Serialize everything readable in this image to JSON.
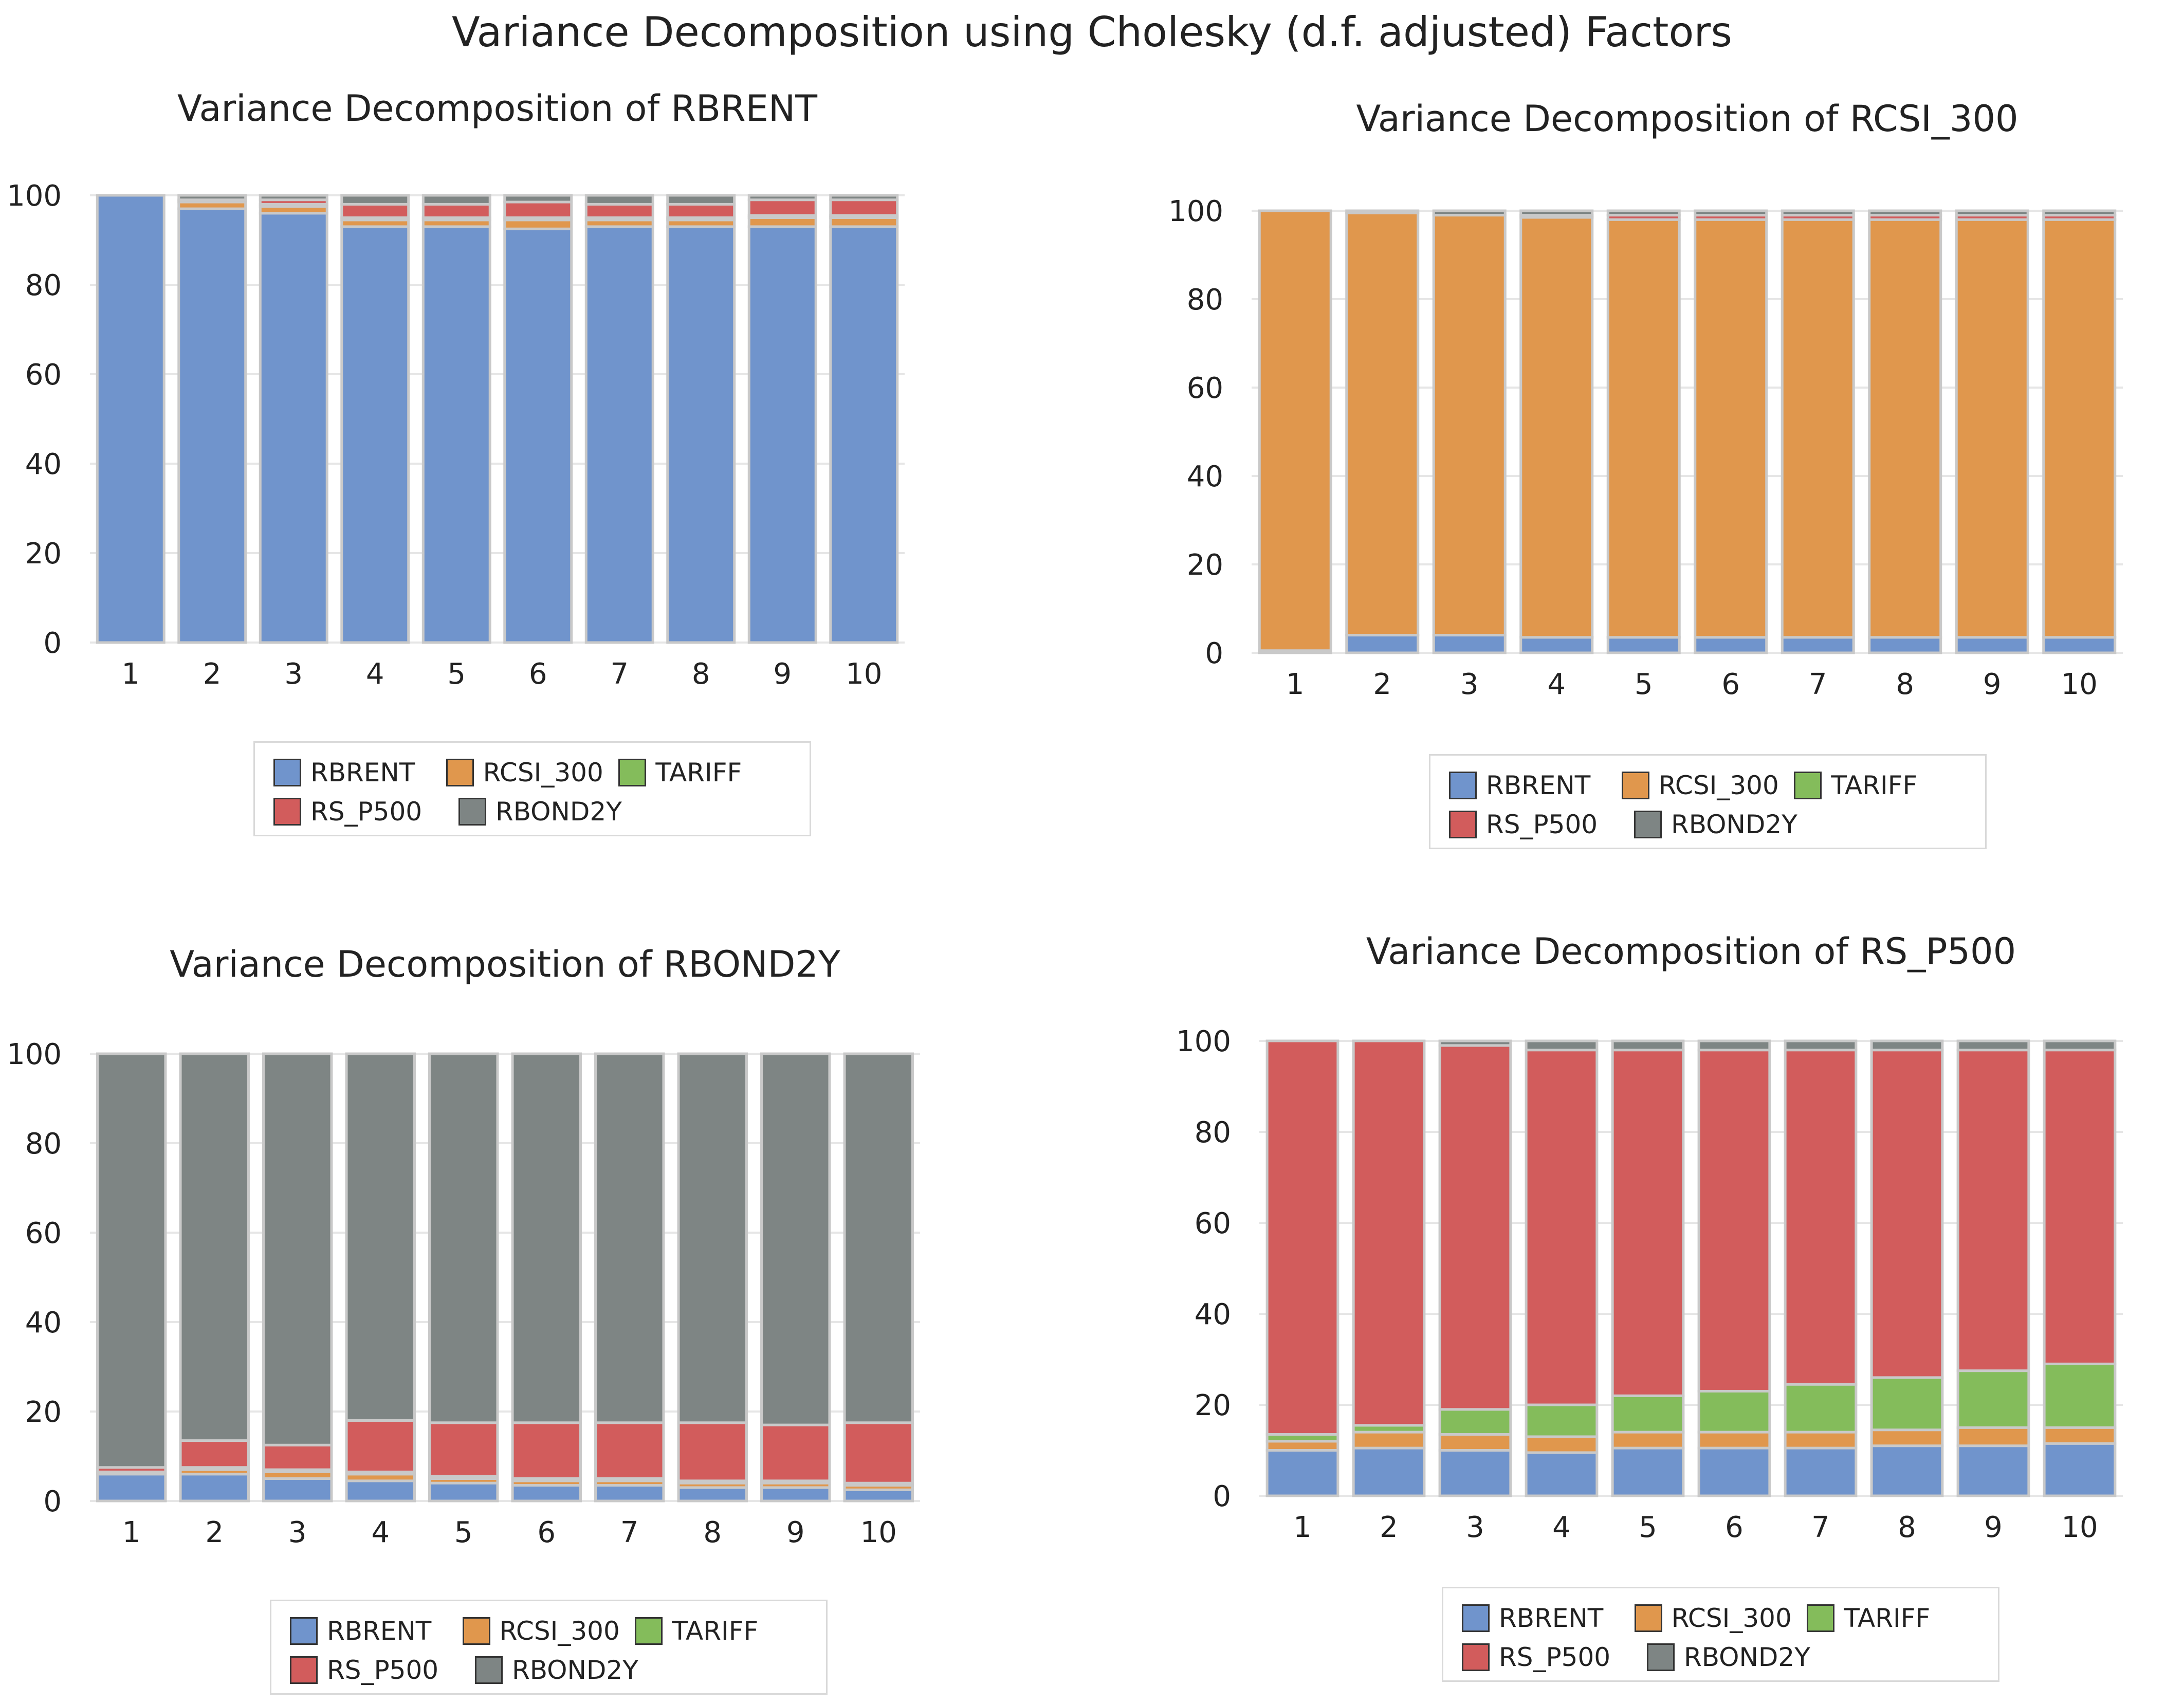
{
  "main_title": "Variance Decomposition using Cholesky (d.f. adjusted) Factors",
  "legend_labels": [
    "RBRENT",
    "RCSI_300",
    "TARIFF",
    "RS_P500",
    "RBOND2Y"
  ],
  "colors": {
    "RBRENT": "#7094cc",
    "RCSI_300": "#e0974d",
    "TARIFF": "#84bc5b",
    "RS_P500": "#d25c5c",
    "RBOND2Y": "#7e8584",
    "gap": "#c9c9c9",
    "grid": "#e6e6e6"
  },
  "chart_data": [
    {
      "type": "bar",
      "stacked": true,
      "title": "Variance Decomposition of RBRENT",
      "categories": [
        "1",
        "2",
        "3",
        "4",
        "5",
        "6",
        "7",
        "8",
        "9",
        "10"
      ],
      "ylim": [
        0,
        100
      ],
      "yticks": [
        "0",
        "20",
        "40",
        "60",
        "80",
        "100"
      ],
      "series": [
        {
          "name": "RBRENT",
          "values": [
            100,
            97,
            96,
            93,
            93,
            92.5,
            93,
            93,
            93,
            93
          ]
        },
        {
          "name": "RCSI_300",
          "values": [
            0,
            1.5,
            1.5,
            1.5,
            1.5,
            2,
            1.5,
            1.5,
            2,
            2
          ]
        },
        {
          "name": "TARIFF",
          "values": [
            0,
            0,
            0.5,
            0.5,
            0.5,
            0.5,
            0.5,
            0.5,
            0.5,
            0.5
          ]
        },
        {
          "name": "RS_P500",
          "values": [
            0,
            0.5,
            1,
            3,
            3,
            3.5,
            3,
            3,
            3.5,
            3.5
          ]
        },
        {
          "name": "RBOND2Y",
          "values": [
            0,
            1,
            1,
            2,
            2,
            1.5,
            2,
            2,
            1,
            1
          ]
        }
      ]
    },
    {
      "type": "bar",
      "stacked": true,
      "title": "Variance Decomposition of RCSI_300",
      "categories": [
        "1",
        "2",
        "3",
        "4",
        "5",
        "6",
        "7",
        "8",
        "9",
        "10"
      ],
      "ylim": [
        0,
        100
      ],
      "yticks": [
        "0",
        "20",
        "40",
        "60",
        "80",
        "100"
      ],
      "series": [
        {
          "name": "RBRENT",
          "values": [
            0.5,
            4,
            4,
            3.5,
            3.5,
            3.5,
            3.5,
            3.5,
            3.5,
            3.5
          ]
        },
        {
          "name": "RCSI_300",
          "values": [
            99.5,
            95.5,
            95,
            95,
            94.5,
            94.5,
            94.5,
            94.5,
            94.5,
            94.5
          ]
        },
        {
          "name": "TARIFF",
          "values": [
            0,
            0,
            0,
            0,
            0,
            0,
            0,
            0,
            0,
            0
          ]
        },
        {
          "name": "RS_P500",
          "values": [
            0,
            0,
            0,
            0.5,
            1,
            1,
            1,
            1,
            1,
            1
          ]
        },
        {
          "name": "RBOND2Y",
          "values": [
            0,
            0.5,
            1,
            1,
            1,
            1,
            1,
            1,
            1,
            1
          ]
        }
      ]
    },
    {
      "type": "bar",
      "stacked": true,
      "title": "Variance Decomposition of RBOND2Y",
      "categories": [
        "1",
        "2",
        "3",
        "4",
        "5",
        "6",
        "7",
        "8",
        "9",
        "10"
      ],
      "ylim": [
        0,
        100
      ],
      "yticks": [
        "0",
        "20",
        "40",
        "60",
        "80",
        "100"
      ],
      "series": [
        {
          "name": "RBRENT",
          "values": [
            6,
            6,
            5,
            4.5,
            4,
            3.5,
            3.5,
            3,
            3,
            2.5
          ]
        },
        {
          "name": "RCSI_300",
          "values": [
            0.5,
            1,
            1.5,
            1.5,
            1,
            1,
            1,
            1,
            1,
            1
          ]
        },
        {
          "name": "TARIFF",
          "values": [
            0,
            0.5,
            0.5,
            0.5,
            0.5,
            0.5,
            0.5,
            0.5,
            0.5,
            0.5
          ]
        },
        {
          "name": "RS_P500",
          "values": [
            1,
            6,
            5.5,
            11.5,
            12,
            12.5,
            12.5,
            13,
            12.5,
            13.5
          ]
        },
        {
          "name": "RBOND2Y",
          "values": [
            92.5,
            86.5,
            87.5,
            82,
            82.5,
            82.5,
            82.5,
            82.5,
            83,
            82.5
          ]
        }
      ]
    },
    {
      "type": "bar",
      "stacked": true,
      "title": "Variance Decomposition of RS_P500",
      "categories": [
        "1",
        "2",
        "3",
        "4",
        "5",
        "6",
        "7",
        "8",
        "9",
        "10"
      ],
      "ylim": [
        0,
        100
      ],
      "yticks": [
        "0",
        "20",
        "40",
        "60",
        "80",
        "100"
      ],
      "series": [
        {
          "name": "RBRENT",
          "values": [
            10,
            10.5,
            10,
            9.5,
            10.5,
            10.5,
            10.5,
            11,
            11,
            11.5
          ]
        },
        {
          "name": "RCSI_300",
          "values": [
            2,
            3.5,
            3.5,
            3.5,
            3.5,
            3.5,
            3.5,
            3.5,
            4,
            3.5
          ]
        },
        {
          "name": "TARIFF",
          "values": [
            1.5,
            1.5,
            5.5,
            7,
            8,
            9,
            10.5,
            11.5,
            12.5,
            14
          ]
        },
        {
          "name": "RS_P500",
          "values": [
            86.5,
            84.5,
            80,
            78,
            76,
            75,
            73.5,
            72,
            70.5,
            69
          ]
        },
        {
          "name": "RBOND2Y",
          "values": [
            0,
            0,
            1,
            2,
            2,
            2,
            2,
            2,
            2,
            2
          ]
        }
      ]
    }
  ]
}
